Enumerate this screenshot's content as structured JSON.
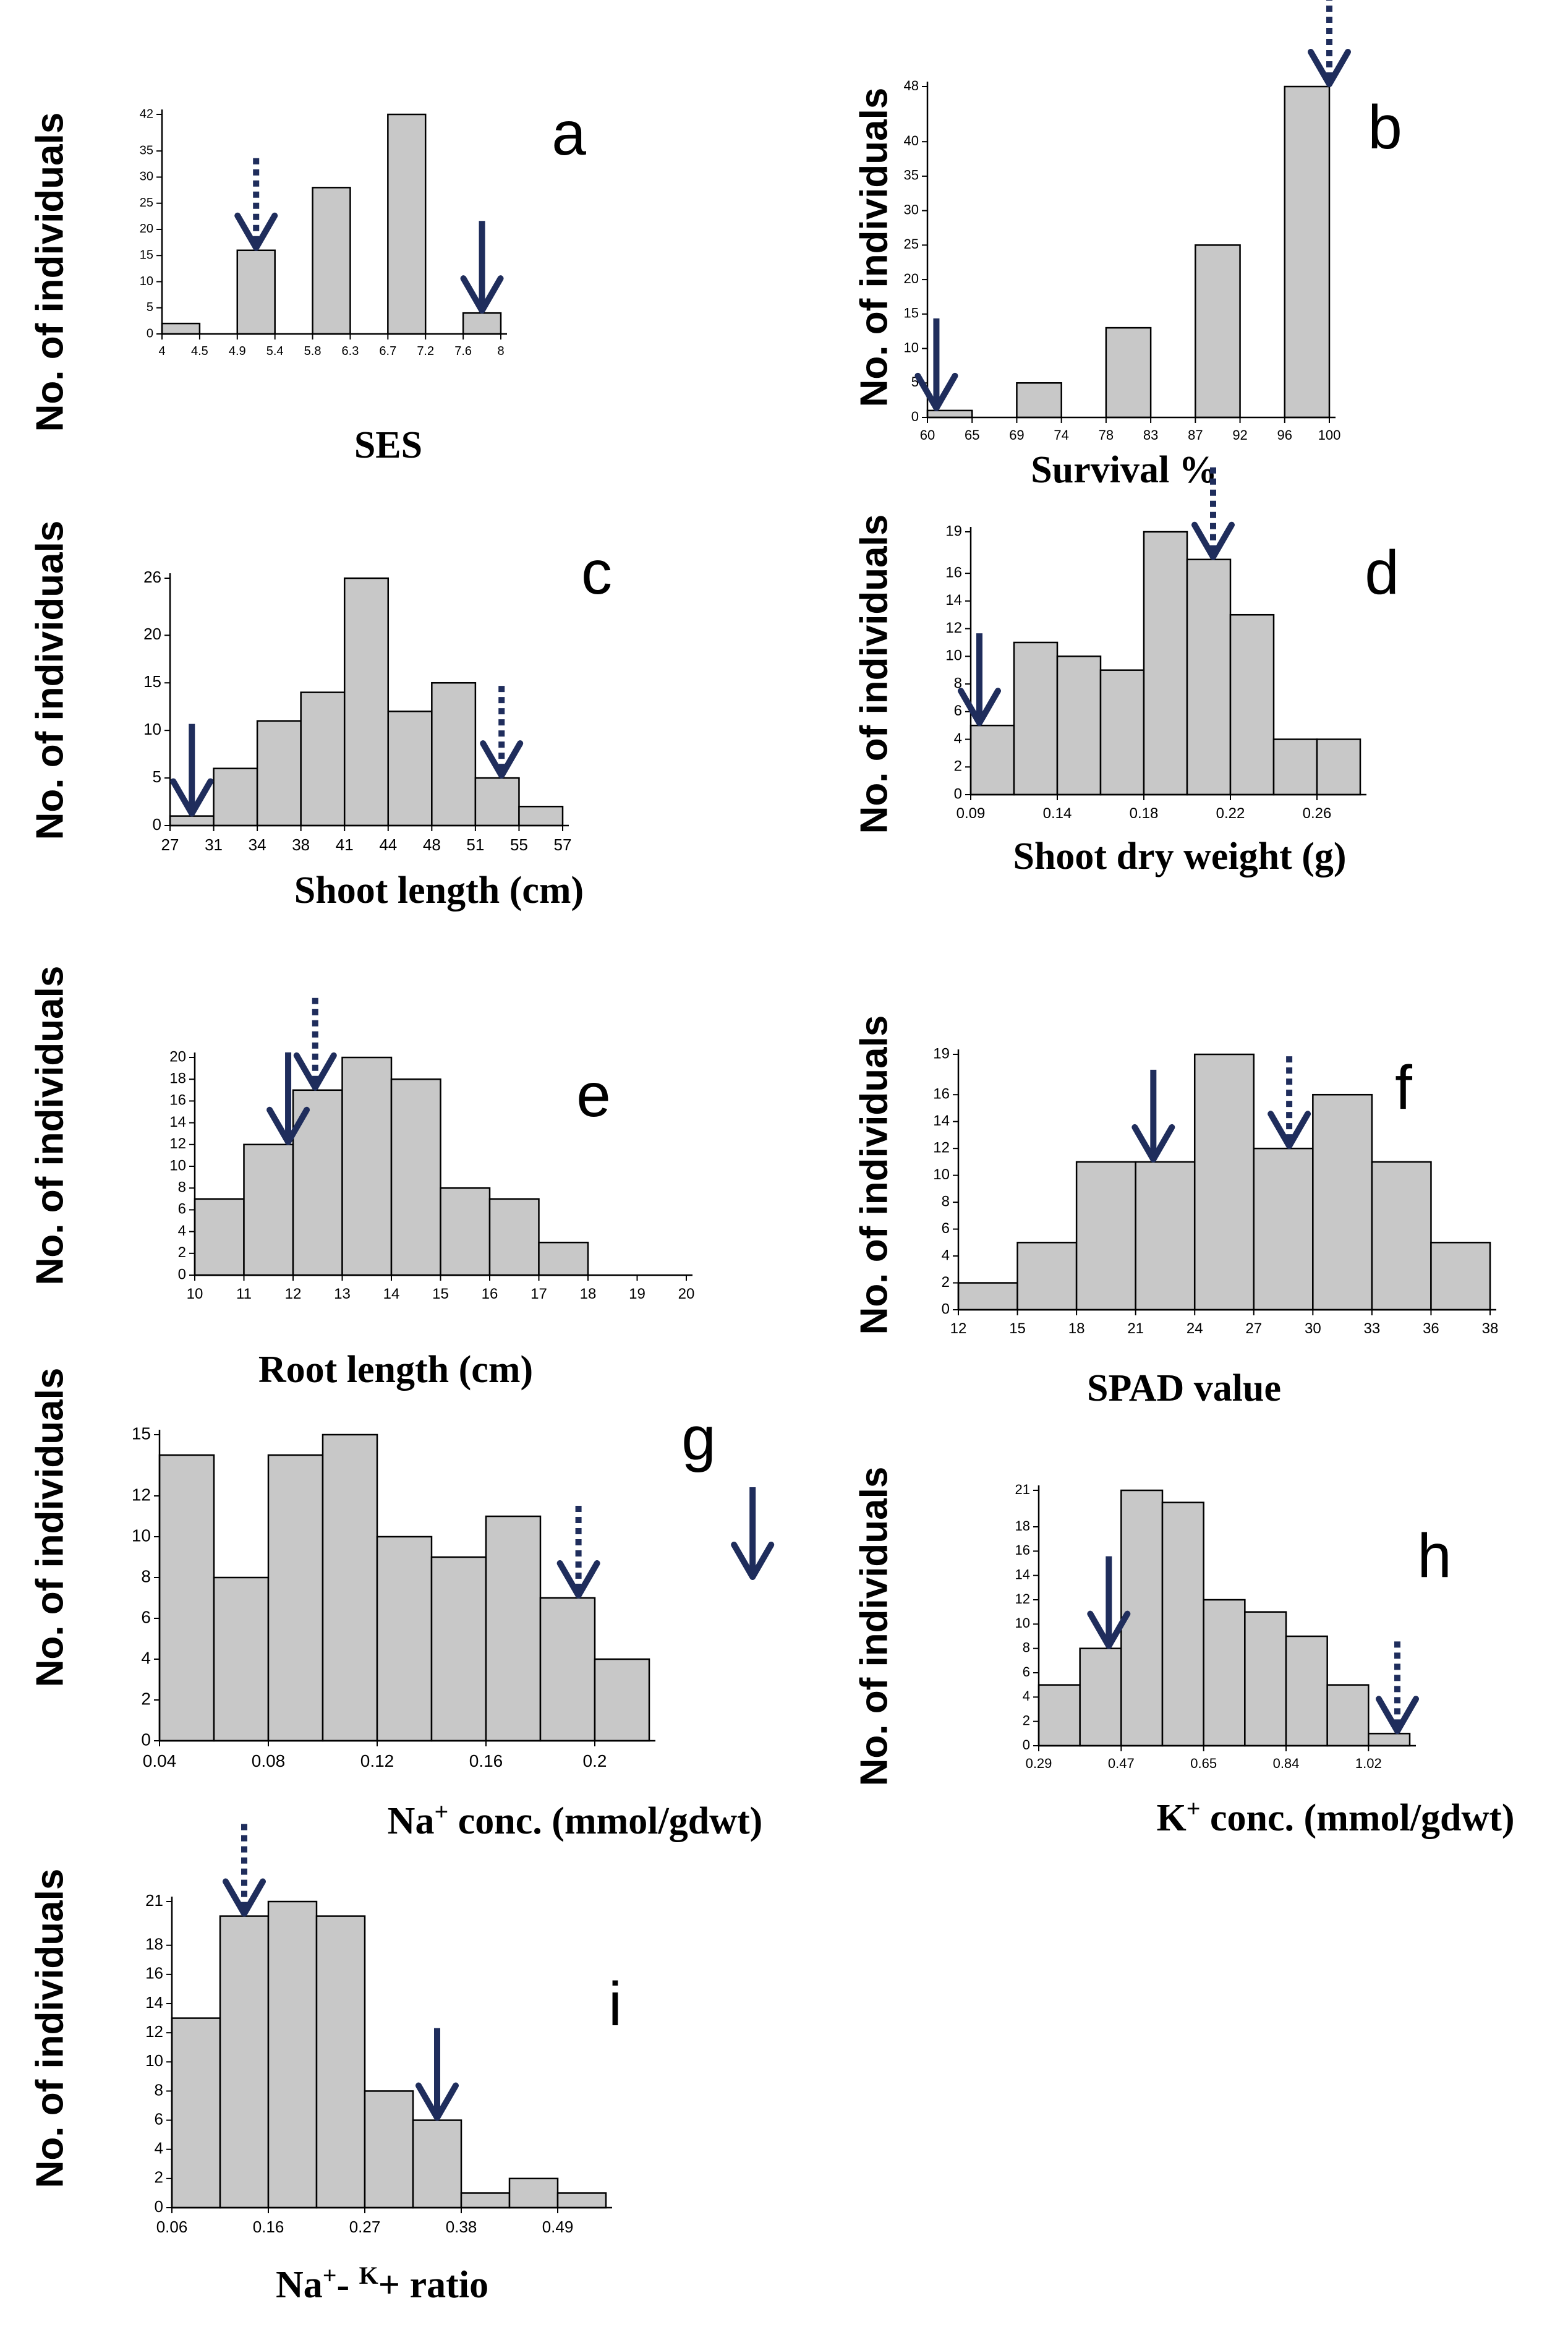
{
  "colors": {
    "bar_fill": "#c8c8c8",
    "bar_stroke": "#000000",
    "arrow": "#1f2d5c"
  },
  "chart_data": [
    {
      "id": "a",
      "letter": "a",
      "type": "bar",
      "ylabel": "No. of individuals",
      "xlabel": "SES",
      "xlabel_sup": [],
      "x_ticks": [
        "4",
        "4.5",
        "4.9",
        "5.4",
        "5.8",
        "6.3",
        "6.7",
        "7.2",
        "7.6",
        "8"
      ],
      "y_ticks": [
        "0",
        "5",
        "10",
        "15",
        "20",
        "25",
        "30",
        "35",
        "42"
      ],
      "bars": [
        {
          "x0": "4",
          "x1": "4.5",
          "value": 2
        },
        {
          "x0": "4.9",
          "x1": "5.4",
          "value": 16
        },
        {
          "x0": "5.8",
          "x1": "6.3",
          "value": 28
        },
        {
          "x0": "6.7",
          "x1": "7.2",
          "value": 42
        },
        {
          "x0": "7.6",
          "x1": "8",
          "value": 4
        }
      ],
      "arrows": [
        {
          "x": 5.15,
          "style": "dashed"
        },
        {
          "x": 7.8,
          "style": "solid"
        }
      ]
    },
    {
      "id": "b",
      "letter": "b",
      "type": "bar",
      "ylabel": "No. of individuals",
      "xlabel": "Survival %",
      "xlabel_sup": [],
      "x_ticks": [
        "60",
        "65",
        "69",
        "74",
        "78",
        "83",
        "87",
        "92",
        "96",
        "100"
      ],
      "y_ticks": [
        "0",
        "5",
        "10",
        "15",
        "20",
        "25",
        "30",
        "35",
        "40",
        "48"
      ],
      "bars": [
        {
          "x0": "60",
          "x1": "65",
          "value": 1
        },
        {
          "x0": "69",
          "x1": "74",
          "value": 5
        },
        {
          "x0": "78",
          "x1": "83",
          "value": 13
        },
        {
          "x0": "87",
          "x1": "92",
          "value": 25
        },
        {
          "x0": "96",
          "x1": "100",
          "value": 48
        }
      ],
      "arrows": [
        {
          "x": 61,
          "style": "solid"
        },
        {
          "x": 100,
          "style": "dashed"
        }
      ]
    },
    {
      "id": "c",
      "letter": "c",
      "type": "histogram",
      "ylabel": "No. of individuals",
      "xlabel": "Shoot length (cm)",
      "xlabel_sup": [],
      "x_ticks": [
        "27",
        "31",
        "34",
        "38",
        "41",
        "44",
        "48",
        "51",
        "55",
        "57"
      ],
      "y_ticks": [
        "0",
        "5",
        "10",
        "15",
        "20",
        "26"
      ],
      "values": [
        1,
        6,
        11,
        14,
        26,
        12,
        15,
        5,
        2
      ],
      "arrows": [
        {
          "x": 0.5,
          "style": "solid"
        },
        {
          "x": 7.6,
          "style": "dashed"
        }
      ]
    },
    {
      "id": "d",
      "letter": "d",
      "type": "histogram",
      "ylabel": "No. of individuals",
      "xlabel": "Shoot dry weight (g)",
      "xlabel_sup": [],
      "x_ticks": [
        "0.09",
        "0.14",
        "0.18",
        "0.22",
        "0.26"
      ],
      "y_ticks": [
        "0",
        "2",
        "4",
        "6",
        "8",
        "10",
        "12",
        "14",
        "16",
        "19"
      ],
      "values": [
        5,
        11,
        10,
        9,
        19,
        17,
        13,
        4,
        4
      ],
      "arrows": [
        {
          "x": 0.2,
          "style": "solid"
        },
        {
          "x": 5.6,
          "style": "dashed"
        }
      ]
    },
    {
      "id": "e",
      "letter": "e",
      "type": "histogram",
      "ylabel": "No. of individuals",
      "xlabel": "Root length (cm)",
      "xlabel_sup": [],
      "x_ticks": [
        "10",
        "11",
        "12",
        "13",
        "14",
        "15",
        "16",
        "17",
        "18",
        "19",
        "20"
      ],
      "y_ticks": [
        "0",
        "2",
        "4",
        "6",
        "8",
        "10",
        "12",
        "14",
        "16",
        "18",
        "20"
      ],
      "values": [
        7,
        12,
        17,
        20,
        18,
        8,
        7,
        3,
        0,
        0
      ],
      "arrows": [
        {
          "x": 1.9,
          "style": "solid"
        },
        {
          "x": 2.45,
          "style": "dashed"
        }
      ]
    },
    {
      "id": "f",
      "letter": "f",
      "type": "histogram",
      "ylabel": "No. of individuals",
      "xlabel": "SPAD value",
      "xlabel_sup": [],
      "x_ticks": [
        "12",
        "15",
        "18",
        "21",
        "24",
        "27",
        "30",
        "33",
        "36",
        "38"
      ],
      "y_ticks": [
        "0",
        "2",
        "4",
        "6",
        "8",
        "10",
        "12",
        "14",
        "16",
        "19"
      ],
      "values": [
        2,
        5,
        11,
        11,
        19,
        12,
        16,
        11,
        5
      ],
      "arrows": [
        {
          "x": 3.3,
          "style": "solid"
        },
        {
          "x": 5.6,
          "style": "dashed"
        }
      ]
    },
    {
      "id": "g",
      "letter": "g",
      "type": "histogram",
      "ylabel": "No. of individuals",
      "xlabel": "Na+ conc. (mmol/gdwt)",
      "xlabel_sup": [
        2
      ],
      "x_ticks": [
        "0.04",
        "0.08",
        "0.12",
        "0.16",
        "0.2"
      ],
      "y_ticks": [
        "0",
        "2",
        "4",
        "6",
        "8",
        "10",
        "12",
        "15"
      ],
      "values": [
        14,
        8,
        14,
        15,
        10,
        9,
        11,
        7,
        4
      ],
      "arrows": [
        {
          "x": 7.7,
          "style": "dashed"
        },
        {
          "x": 10.9,
          "style": "solid"
        }
      ]
    },
    {
      "id": "h",
      "letter": "h",
      "type": "histogram",
      "ylabel": "No. of individuals",
      "xlabel": "K+ conc. (mmol/gdwt)",
      "xlabel_sup": [
        1
      ],
      "x_ticks": [
        "0.29",
        "0.47",
        "0.65",
        "0.84",
        "1.02"
      ],
      "y_ticks": [
        "0",
        "2",
        "4",
        "6",
        "8",
        "10",
        "12",
        "14",
        "16",
        "18",
        "21"
      ],
      "values": [
        5,
        8,
        21,
        20,
        12,
        11,
        9,
        5,
        1
      ],
      "arrows": [
        {
          "x": 1.7,
          "style": "solid"
        },
        {
          "x": 8.7,
          "style": "dashed"
        }
      ]
    },
    {
      "id": "i",
      "letter": "i",
      "type": "histogram",
      "ylabel": "No. of individuals",
      "xlabel": "Na+- K+ ratio",
      "xlabel_sup": [
        2,
        5
      ],
      "x_ticks": [
        "0.06",
        "0.16",
        "0.27",
        "0.38",
        "0.49"
      ],
      "y_ticks": [
        "0",
        "2",
        "4",
        "6",
        "8",
        "10",
        "12",
        "14",
        "16",
        "18",
        "21"
      ],
      "values": [
        13,
        20,
        21,
        20,
        8,
        6,
        1,
        2,
        1
      ],
      "arrows": [
        {
          "x": 1.5,
          "style": "dashed"
        },
        {
          "x": 5.5,
          "style": "solid"
        }
      ]
    }
  ]
}
